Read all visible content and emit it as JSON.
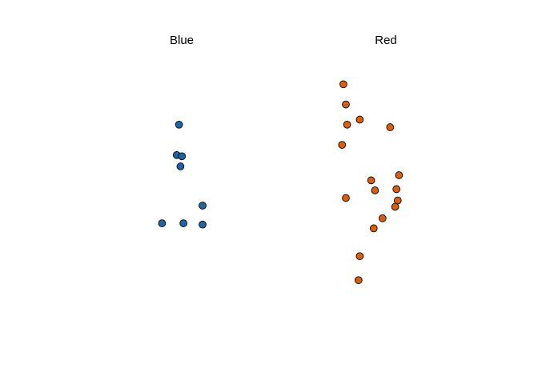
{
  "chart_data": [
    {
      "type": "scatter",
      "title": "Blue",
      "color": "#1f65a6",
      "points": [
        {
          "x": 0.43,
          "y": 0.76
        },
        {
          "x": 0.4,
          "y": 0.64
        },
        {
          "x": 0.47,
          "y": 0.635
        },
        {
          "x": 0.45,
          "y": 0.595
        },
        {
          "x": 0.75,
          "y": 0.44
        },
        {
          "x": 0.2,
          "y": 0.37
        },
        {
          "x": 0.49,
          "y": 0.37
        },
        {
          "x": 0.75,
          "y": 0.365
        }
      ]
    },
    {
      "type": "scatter",
      "title": "Red",
      "color": "#d95f0e",
      "points": [
        {
          "x": 0.17,
          "y": 0.92
        },
        {
          "x": 0.19,
          "y": 0.84
        },
        {
          "x": 0.3,
          "y": 0.78
        },
        {
          "x": 0.2,
          "y": 0.76
        },
        {
          "x": 0.54,
          "y": 0.75
        },
        {
          "x": 0.16,
          "y": 0.68
        },
        {
          "x": 0.61,
          "y": 0.56
        },
        {
          "x": 0.39,
          "y": 0.54
        },
        {
          "x": 0.42,
          "y": 0.5
        },
        {
          "x": 0.59,
          "y": 0.505
        },
        {
          "x": 0.19,
          "y": 0.47
        },
        {
          "x": 0.6,
          "y": 0.46
        },
        {
          "x": 0.58,
          "y": 0.435
        },
        {
          "x": 0.48,
          "y": 0.39
        },
        {
          "x": 0.41,
          "y": 0.35
        },
        {
          "x": 0.3,
          "y": 0.24
        },
        {
          "x": 0.29,
          "y": 0.145
        }
      ]
    }
  ]
}
